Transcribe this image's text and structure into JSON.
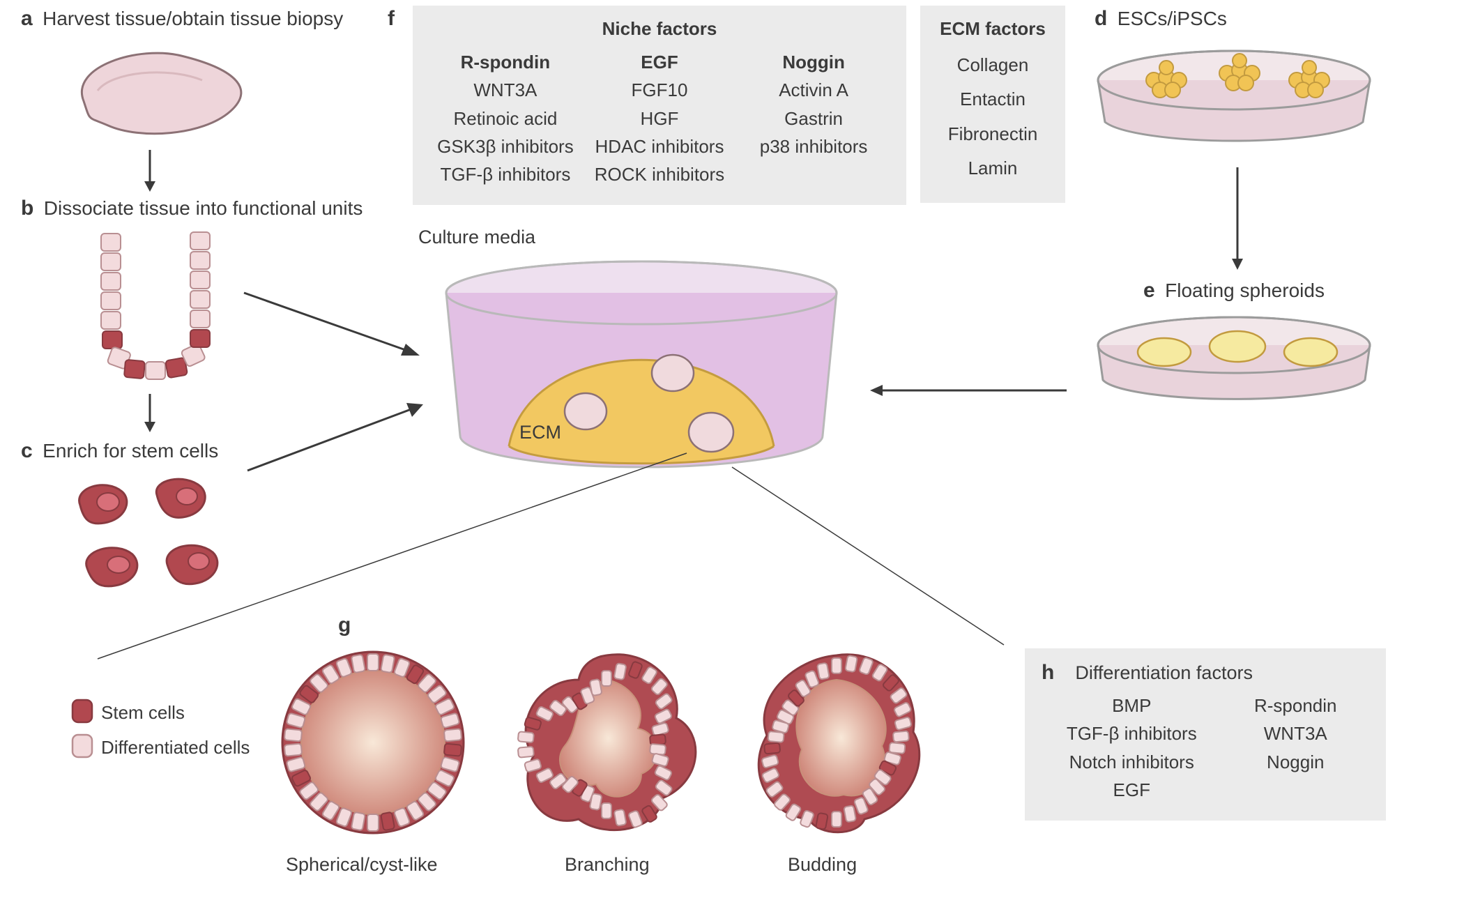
{
  "colors": {
    "bg": "#ffffff",
    "box_bg": "#ebebeb",
    "text": "#3a3a3a",
    "stem_fill": "#b1484f",
    "stem_stroke": "#883a40",
    "diff_fill": "#f3dbdd",
    "diff_stroke": "#b98f92",
    "tissue_fill": "#eed5da",
    "tissue_stroke": "#8c7175",
    "media_fill": "#e2c0e4",
    "media_rim": "#b9b9b9",
    "ecm_fill": "#f2c861",
    "ecm_stroke": "#c49c3f",
    "organoid_outer": "#af4b52",
    "organoid_inner": "#f2dac2",
    "ipsc_fill": "#f1c455",
    "ipsc_stroke": "#c29a3f",
    "spheroid_fill": "#f6eaa0",
    "arrow": "#3a3a3a"
  },
  "font": {
    "family": "Arial, Helvetica, sans-serif",
    "panel_letter_size": 30,
    "panel_title_size": 28,
    "body_size": 26
  },
  "panels": {
    "a": {
      "letter": "a",
      "title": "Harvest tissue/obtain tissue biopsy"
    },
    "b": {
      "letter": "b",
      "title": "Dissociate tissue into functional units"
    },
    "c": {
      "letter": "c",
      "title": "Enrich for stem cells"
    },
    "d": {
      "letter": "d",
      "title": "ESCs/iPSCs"
    },
    "e": {
      "letter": "e",
      "title": "Floating spheroids"
    },
    "f": {
      "letter": "f"
    },
    "g": {
      "letter": "g"
    },
    "h": {
      "letter": "h",
      "title": "Differentiation factors"
    }
  },
  "f_box": {
    "niche_header": "Niche factors",
    "col1_header": "R-spondin",
    "col1": [
      "WNT3A",
      "Retinoic acid",
      "GSK3β inhibitors",
      "TGF-β inhibitors"
    ],
    "col2_header": "EGF",
    "col2": [
      "FGF10",
      "HGF",
      "HDAC inhibitors",
      "ROCK inhibitors"
    ],
    "col3_header": "Noggin",
    "col3": [
      "Activin A",
      "Gastrin",
      "p38 inhibitors"
    ],
    "ecm_header": "ECM factors",
    "ecm": [
      "Collagen",
      "Entactin",
      "Fibronectin",
      "Lamin"
    ]
  },
  "h_box": {
    "header": "Differentiation factors",
    "col1": [
      "BMP",
      "TGF-β inhibitors",
      "Notch inhibitors",
      "EGF"
    ],
    "col2": [
      "R-spondin",
      "WNT3A",
      "Noggin"
    ]
  },
  "labels": {
    "culture_media": "Culture media",
    "ecm": "ECM",
    "legend_stem": "Stem cells",
    "legend_diff": "Differentiated cells",
    "g1": "Spherical/cyst-like",
    "g2": "Branching",
    "g3": "Budding"
  }
}
